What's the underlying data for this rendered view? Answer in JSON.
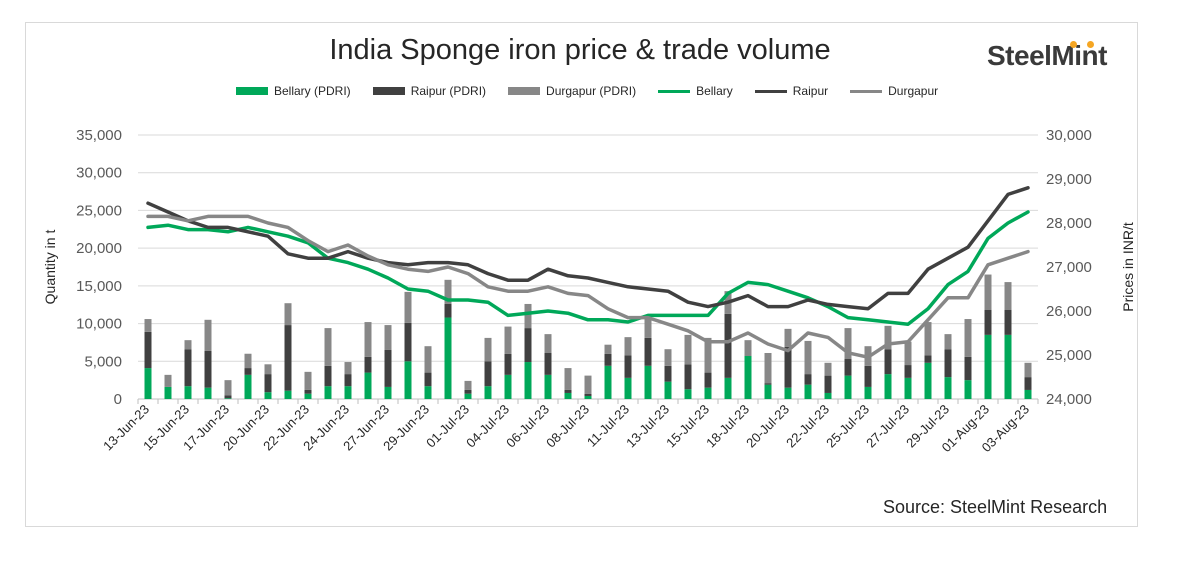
{
  "chart_data": {
    "type": "bar+line",
    "title": "India Sponge iron price & trade volume",
    "ylabel_left": "Quantity in t",
    "ylabel_right": "Prices in INR/t",
    "ylim_left": [
      0,
      35000
    ],
    "yticks_left": [
      "0",
      "5,000",
      "10,000",
      "15,000",
      "20,000",
      "25,000",
      "30,000",
      "35,000"
    ],
    "ylim_right": [
      24000,
      30000
    ],
    "yticks_right": [
      "24,000",
      "25,000",
      "26,000",
      "27,000",
      "28,000",
      "29,000",
      "30,000"
    ],
    "grid": true,
    "legend_position": "top",
    "source": "Source: SteelMint Research",
    "categories": [
      "13-Jun-23",
      "14-Jun-23",
      "15-Jun-23",
      "16-Jun-23",
      "17-Jun-23",
      "19-Jun-23",
      "20-Jun-23",
      "21-Jun-23",
      "22-Jun-23",
      "23-Jun-23",
      "24-Jun-23",
      "26-Jun-23",
      "27-Jun-23",
      "28-Jun-23",
      "29-Jun-23",
      "30-Jun-23",
      "01-Jul-23",
      "03-Jul-23",
      "04-Jul-23",
      "05-Jul-23",
      "06-Jul-23",
      "07-Jul-23",
      "08-Jul-23",
      "10-Jul-23",
      "11-Jul-23",
      "12-Jul-23",
      "13-Jul-23",
      "14-Jul-23",
      "15-Jul-23",
      "17-Jul-23",
      "18-Jul-23",
      "19-Jul-23",
      "20-Jul-23",
      "21-Jul-23",
      "22-Jul-23",
      "24-Jul-23",
      "25-Jul-23",
      "26-Jul-23",
      "27-Jul-23",
      "28-Jul-23",
      "29-Jul-23",
      "31-Jul-23",
      "01-Aug-23",
      "02-Aug-23",
      "03-Aug-23"
    ],
    "tick_labels": [
      "13-Jun-23",
      "15-Jun-23",
      "17-Jun-23",
      "20-Jun-23",
      "22-Jun-23",
      "24-Jun-23",
      "27-Jun-23",
      "29-Jun-23",
      "01-Jul-23",
      "04-Jul-23",
      "06-Jul-23",
      "08-Jul-23",
      "11-Jul-23",
      "13-Jul-23",
      "15-Jul-23",
      "18-Jul-23",
      "20-Jul-23",
      "22-Jul-23",
      "25-Jul-23",
      "27-Jul-23",
      "29-Jul-23",
      "01-Aug-23",
      "03-Aug-23"
    ],
    "bar_series": [
      {
        "name": "Bellary (PDRI)",
        "color": "#00a859",
        "values": [
          4100,
          1600,
          1700,
          1500,
          100,
          3200,
          900,
          1100,
          700,
          1700,
          1700,
          3500,
          1600,
          5000,
          1700,
          10800,
          700,
          1700,
          3200,
          4900,
          3200,
          800,
          400,
          4400,
          2800,
          4400,
          2300,
          1300,
          1500,
          2800,
          5700,
          1900,
          1500,
          1900,
          800,
          3100,
          1600,
          3300,
          2800,
          4800,
          2900,
          2500,
          8500,
          8500,
          1200
        ]
      },
      {
        "name": "Raipur (PDRI)",
        "color": "#404040",
        "values": [
          4800,
          0,
          4900,
          4900,
          400,
          900,
          2400,
          8700,
          500,
          2700,
          1600,
          2100,
          4900,
          5100,
          1800,
          1800,
          500,
          3300,
          2800,
          4500,
          2900,
          400,
          300,
          1600,
          3000,
          3700,
          2100,
          3300,
          2000,
          8500,
          0,
          200,
          5400,
          1400,
          2300,
          2200,
          2800,
          3300,
          1700,
          1000,
          3700,
          3100,
          3300,
          3300,
          1700
        ]
      },
      {
        "name": "Durgapur (PDRI)",
        "color": "#878787",
        "values": [
          1700,
          1600,
          1200,
          4100,
          2000,
          1900,
          1300,
          2900,
          2400,
          5000,
          1600,
          4600,
          3300,
          4100,
          3500,
          3200,
          1200,
          3100,
          3600,
          3200,
          2500,
          2900,
          2400,
          1200,
          2400,
          2900,
          2200,
          3900,
          4600,
          3000,
          2100,
          4000,
          2400,
          4400,
          1700,
          4100,
          2600,
          3100,
          3100,
          4400,
          2000,
          5000,
          4700,
          3700,
          1900
        ]
      }
    ],
    "line_series": [
      {
        "name": "Bellary",
        "color": "#00a859",
        "values": [
          27900,
          27950,
          27850,
          27850,
          27800,
          27900,
          27800,
          27700,
          27550,
          27200,
          27100,
          26950,
          26750,
          26500,
          26450,
          26250,
          26250,
          26200,
          25900,
          25950,
          26000,
          25950,
          25800,
          25800,
          25750,
          25900,
          25900,
          25900,
          25900,
          26400,
          26650,
          26600,
          26450,
          26300,
          26100,
          25850,
          25800,
          25750,
          25700,
          26050,
          26600,
          26900,
          27650,
          28000,
          28250
        ]
      },
      {
        "name": "Raipur",
        "color": "#404040",
        "values": [
          28450,
          28250,
          28050,
          27900,
          27900,
          27800,
          27700,
          27300,
          27200,
          27200,
          27350,
          27200,
          27100,
          27050,
          27100,
          27100,
          27050,
          26850,
          26700,
          26700,
          26950,
          26800,
          26750,
          26650,
          26550,
          26500,
          26450,
          26200,
          26100,
          26200,
          26350,
          26100,
          26100,
          26250,
          26150,
          26100,
          26050,
          26400,
          26400,
          26950,
          27200,
          27450,
          28050,
          28650,
          28800
        ]
      },
      {
        "name": "Durgapur",
        "color": "#878787",
        "values": [
          28150,
          28150,
          28050,
          28150,
          28150,
          28150,
          28000,
          27900,
          27600,
          27350,
          27500,
          27250,
          27050,
          26950,
          26900,
          27000,
          26850,
          26550,
          26450,
          26450,
          26550,
          26400,
          26350,
          26050,
          25850,
          25850,
          25700,
          25550,
          25300,
          25300,
          25500,
          25250,
          25100,
          25500,
          25400,
          25050,
          24950,
          25250,
          25300,
          25800,
          26300,
          26300,
          27050,
          27200,
          27350
        ]
      }
    ]
  },
  "logo": "SteelMint"
}
